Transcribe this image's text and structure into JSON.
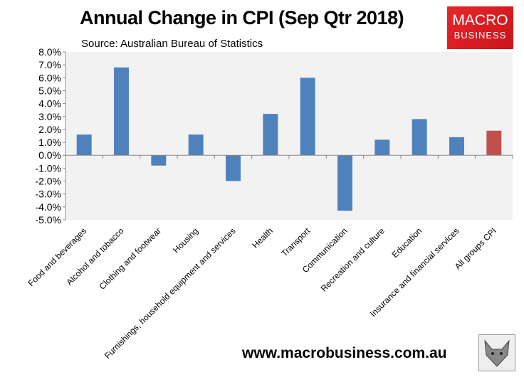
{
  "chart_data": {
    "type": "bar",
    "title": "Annual Change in CPI (Sep Qtr 2018)",
    "subtitle": "Source: Australian Bureau of Statistics",
    "categories": [
      "Food and beverages",
      "Alcohol and tobacco",
      "Clothing and footwear",
      "Housing",
      "Furnishings, household equipment and services",
      "Health",
      "Transport",
      "Communication",
      "Recreation and culture",
      "Education",
      "Insurance and financial services",
      "All groups CPI"
    ],
    "values": [
      1.6,
      6.8,
      -0.8,
      1.6,
      -2.0,
      3.2,
      6.0,
      -4.3,
      1.2,
      2.8,
      1.4,
      1.9
    ],
    "ylim": [
      -5,
      8
    ],
    "yticks": [
      "8.0%",
      "7.0%",
      "6.0%",
      "5.0%",
      "4.0%",
      "3.0%",
      "2.0%",
      "1.0%",
      "0.0%",
      "-1.0%",
      "-2.0%",
      "-3.0%",
      "-4.0%",
      "-5.0%"
    ],
    "xlabel": "",
    "ylabel": "",
    "grid": false,
    "colors": {
      "bar": "#4f81bd",
      "highlight": "#c0504d",
      "plot_bg": "#f2f2f2"
    },
    "highlight_category": "All groups CPI"
  },
  "branding": {
    "logo_line1": "MACRO",
    "logo_line2": "BUSINESS",
    "url": "www.macrobusiness.com.au",
    "mascot_icon": "wolf-icon"
  }
}
